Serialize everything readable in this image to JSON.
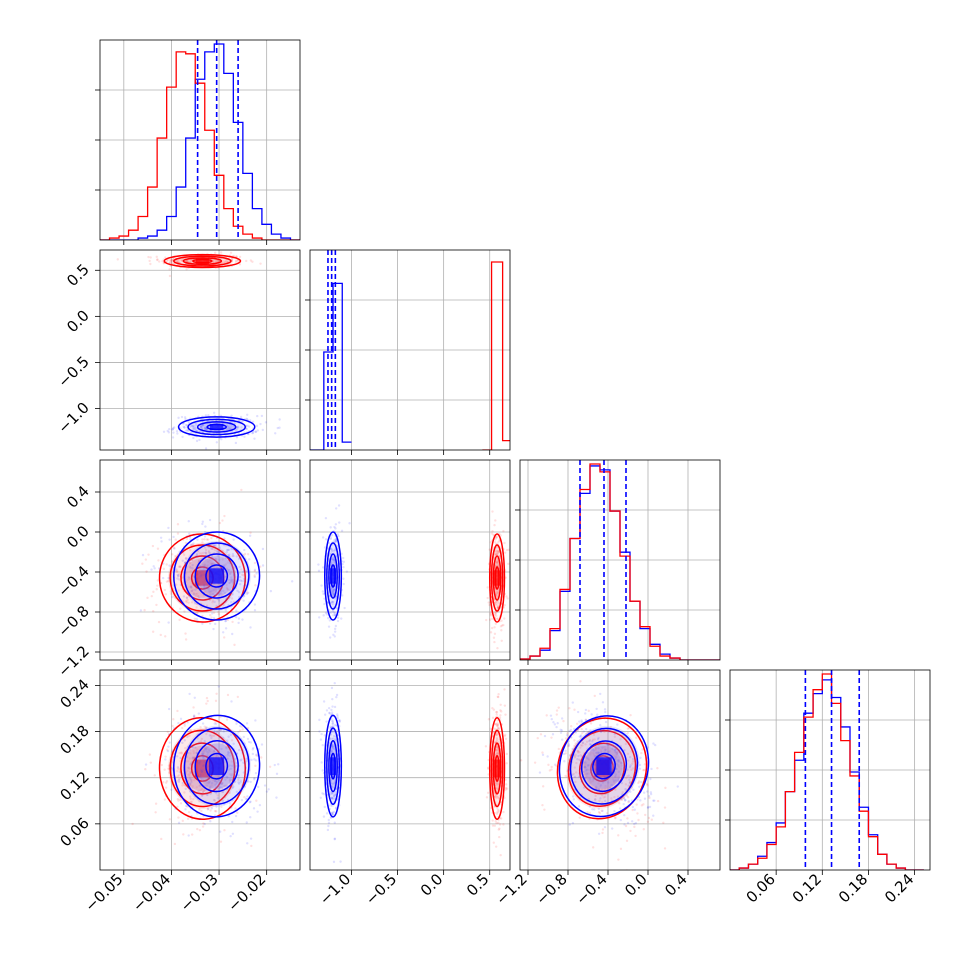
{
  "chart_data": {
    "type": "corner",
    "parameters": 4,
    "series": [
      {
        "name": "",
        "color": "#0000ff"
      },
      {
        "name": "",
        "color": "#ff0000"
      }
    ],
    "axes": [
      {
        "range": [
          -0.055,
          -0.013
        ],
        "ticks": [
          -0.05,
          -0.04,
          -0.03,
          -0.02
        ],
        "tick_labels": [
          "−0.05",
          "−0.04",
          "−0.03",
          "−0.02"
        ]
      },
      {
        "range": [
          -1.45,
          0.72
        ],
        "ticks": [
          -1.0,
          -0.5,
          0.0,
          0.5
        ],
        "tick_labels": [
          "−1.0",
          "−0.5",
          "0.0",
          "0.5"
        ]
      },
      {
        "range": [
          -1.28,
          0.72
        ],
        "ticks": [
          -1.2,
          -0.8,
          -0.4,
          0.0,
          0.4
        ],
        "tick_labels": [
          "−1.2",
          "−0.8",
          "−0.4",
          "0.0",
          "0.4"
        ]
      },
      {
        "range": [
          0.0,
          0.26
        ],
        "ticks": [
          0.06,
          0.12,
          0.18,
          0.24
        ],
        "tick_labels": [
          "0.06",
          "0.12",
          "0.18",
          "0.24"
        ]
      }
    ],
    "histograms": [
      {
        "bin_edges": [
          -0.055,
          -0.053,
          -0.051,
          -0.049,
          -0.047,
          -0.045,
          -0.043,
          -0.041,
          -0.039,
          -0.037,
          -0.035,
          -0.033,
          -0.031,
          -0.029,
          -0.027,
          -0.025,
          -0.023,
          -0.021,
          -0.019,
          -0.017,
          -0.015,
          -0.013
        ],
        "counts_blue": [
          0,
          0,
          0,
          0,
          0.01,
          0.02,
          0.05,
          0.12,
          0.27,
          0.52,
          0.82,
          0.96,
          1.0,
          0.85,
          0.6,
          0.34,
          0.16,
          0.08,
          0.03,
          0.01,
          0.0
        ],
        "counts_red": [
          0,
          0.01,
          0.02,
          0.05,
          0.12,
          0.27,
          0.52,
          0.78,
          0.96,
          0.95,
          0.8,
          0.56,
          0.33,
          0.16,
          0.07,
          0.03,
          0.01,
          0.0,
          0,
          0,
          0
        ],
        "quantiles": [
          -0.0345,
          -0.0305,
          -0.026
        ]
      },
      {
        "bin_edges": [
          -1.45,
          -1.3,
          -1.2,
          -1.1,
          -1.0
        ],
        "counts_blue": [
          0.0,
          0.5,
          0.85,
          0.04
        ],
        "counts_red": [
          0,
          0,
          0,
          0
        ],
        "extra_red_bins": [
          [
            0.42,
            0.52,
            0.0
          ],
          [
            0.52,
            0.64,
            1.0
          ],
          [
            0.64,
            0.72,
            0.05
          ]
        ],
        "quantiles": [
          -1.255,
          -1.215,
          -1.175
        ]
      },
      {
        "bin_edges": [
          -1.28,
          -1.18,
          -1.08,
          -0.98,
          -0.88,
          -0.78,
          -0.68,
          -0.58,
          -0.48,
          -0.38,
          -0.28,
          -0.18,
          -0.08,
          0.02,
          0.12,
          0.22,
          0.32,
          0.42,
          0.52,
          0.62,
          0.72
        ],
        "counts_blue": [
          0.005,
          0.02,
          0.05,
          0.15,
          0.35,
          0.62,
          0.85,
          0.99,
          0.97,
          0.76,
          0.55,
          0.3,
          0.16,
          0.08,
          0.03,
          0.01,
          0.0,
          0,
          0,
          0
        ],
        "counts_red": [
          0.005,
          0.02,
          0.06,
          0.16,
          0.36,
          0.62,
          0.87,
          1.0,
          0.96,
          0.76,
          0.53,
          0.3,
          0.17,
          0.07,
          0.02,
          0.01,
          0.0,
          0,
          0,
          0
        ],
        "quantiles": [
          -0.68,
          -0.44,
          -0.22
        ]
      },
      {
        "bin_edges": [
          0.0,
          0.012,
          0.024,
          0.036,
          0.048,
          0.06,
          0.072,
          0.084,
          0.096,
          0.108,
          0.12,
          0.132,
          0.144,
          0.156,
          0.168,
          0.18,
          0.192,
          0.204,
          0.216,
          0.228,
          0.24,
          0.252
        ],
        "counts_blue": [
          0.0,
          0.01,
          0.03,
          0.07,
          0.14,
          0.24,
          0.4,
          0.56,
          0.8,
          0.9,
          0.97,
          0.88,
          0.73,
          0.5,
          0.32,
          0.18,
          0.08,
          0.03,
          0.01,
          0.0,
          0
        ],
        "counts_red": [
          0.0,
          0.01,
          0.03,
          0.06,
          0.13,
          0.22,
          0.4,
          0.6,
          0.78,
          0.92,
          1.0,
          0.85,
          0.66,
          0.48,
          0.3,
          0.17,
          0.08,
          0.03,
          0.01,
          0.0,
          0
        ],
        "quantiles": [
          0.098,
          0.132,
          0.168
        ]
      }
    ],
    "clusters_2d": [
      {
        "xi": 0,
        "yi": 1,
        "blue": {
          "mean": [
            -0.0305,
            -1.2
          ],
          "sd": [
            0.004,
            0.055
          ],
          "rho": 0.0
        },
        "red": {
          "mean": [
            -0.0335,
            0.6
          ],
          "sd": [
            0.004,
            0.035
          ],
          "rho": 0.0
        }
      },
      {
        "xi": 0,
        "yi": 2,
        "blue": {
          "mean": [
            -0.0305,
            -0.44
          ],
          "sd": [
            0.0045,
            0.22
          ],
          "rho": -0.2
        },
        "red": {
          "mean": [
            -0.0335,
            -0.46
          ],
          "sd": [
            0.0045,
            0.22
          ],
          "rho": 0.15
        }
      },
      {
        "xi": 0,
        "yi": 3,
        "blue": {
          "mean": [
            -0.0305,
            0.135
          ],
          "sd": [
            0.0045,
            0.033
          ],
          "rho": -0.1
        },
        "red": {
          "mean": [
            -0.0335,
            0.132
          ],
          "sd": [
            0.0045,
            0.033
          ],
          "rho": 0.05
        }
      },
      {
        "xi": 1,
        "yi": 2,
        "blue": {
          "mean": [
            -1.2,
            -0.44
          ],
          "sd": [
            0.045,
            0.22
          ],
          "rho": 0.0
        },
        "red": {
          "mean": [
            0.58,
            -0.46
          ],
          "sd": [
            0.04,
            0.22
          ],
          "rho": 0.0
        }
      },
      {
        "xi": 1,
        "yi": 3,
        "blue": {
          "mean": [
            -1.2,
            0.135
          ],
          "sd": [
            0.045,
            0.033
          ],
          "rho": 0.0
        },
        "red": {
          "mean": [
            0.58,
            0.132
          ],
          "sd": [
            0.04,
            0.033
          ],
          "rho": 0.0
        }
      },
      {
        "xi": 2,
        "yi": 3,
        "blue": {
          "mean": [
            -0.44,
            0.135
          ],
          "sd": [
            0.22,
            0.033
          ],
          "rho": -0.35
        },
        "red": {
          "mean": [
            -0.46,
            0.132
          ],
          "sd": [
            0.22,
            0.033
          ],
          "rho": -0.35
        }
      }
    ],
    "contour_levels_sigma": [
      0.5,
      1.0,
      1.5,
      2.0
    ],
    "grid": true,
    "title": "",
    "xlabel": "",
    "ylabel": ""
  }
}
